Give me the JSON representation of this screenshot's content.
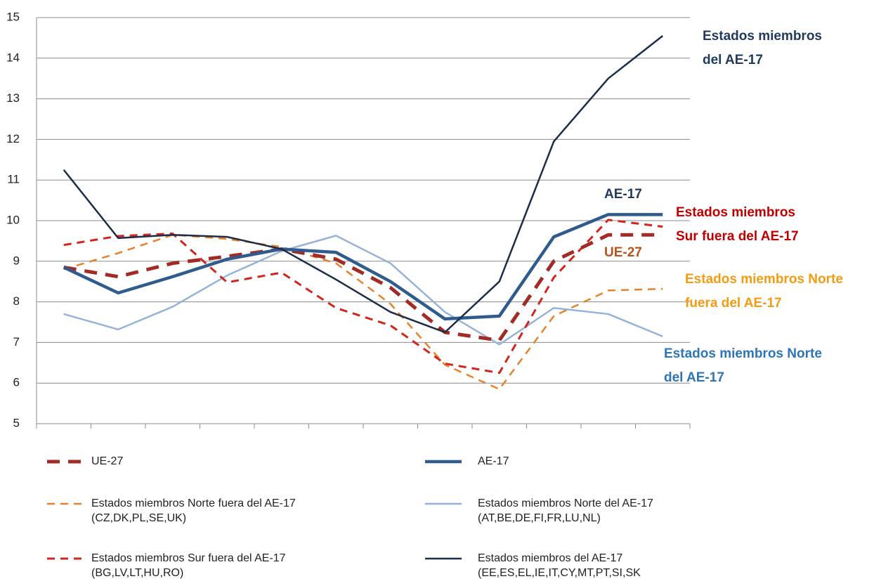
{
  "chart_data": {
    "type": "line",
    "categories": [
      null,
      null,
      null,
      null,
      null,
      null,
      null,
      null,
      null,
      null,
      null,
      null
    ],
    "ylim": [
      5,
      15
    ],
    "yticks": [
      5,
      6,
      7,
      8,
      9,
      10,
      11,
      12,
      13,
      14,
      15
    ],
    "grid": true,
    "series": [
      {
        "name": "UE-27",
        "color": "#a32b26",
        "style": "dashed",
        "values": [
          8.85,
          8.62,
          8.95,
          9.12,
          9.3,
          9.05,
          8.35,
          7.25,
          7.05,
          9.0,
          9.65,
          9.65
        ]
      },
      {
        "name": "AE-17",
        "color": "#2f5b8f",
        "style": "solid",
        "values": [
          8.85,
          8.22,
          8.62,
          9.05,
          9.3,
          9.22,
          8.5,
          7.58,
          7.65,
          9.6,
          10.15,
          10.15
        ]
      },
      {
        "name": "Estados miembros Norte fuera del AE-17",
        "note": "(CZ,DK,PL,SE,UK)",
        "color": "#e8822a",
        "style": "dashed",
        "values": [
          8.8,
          9.2,
          9.65,
          9.55,
          9.35,
          8.95,
          7.95,
          6.45,
          5.85,
          7.65,
          8.28,
          8.32
        ]
      },
      {
        "name": "Estados miembros Norte del AE-17",
        "note": "(AT,BE,DE,FI,FR,LU,NL)",
        "color": "#95b3d7",
        "style": "solid",
        "values": [
          7.7,
          7.32,
          7.88,
          8.65,
          9.25,
          9.63,
          8.95,
          7.75,
          6.95,
          7.85,
          7.7,
          7.15
        ]
      },
      {
        "name": "Estados miembros Sur fuera del AE-17",
        "note": "(BG,LV,LT,HU,RO)",
        "color": "#d0261e",
        "style": "dashed",
        "values": [
          9.4,
          9.62,
          9.68,
          8.48,
          8.72,
          7.85,
          7.42,
          6.48,
          6.25,
          8.6,
          10.02,
          9.85
        ]
      },
      {
        "name": "Estados miembros del AE-17",
        "note": "(EE,ES,EL,IE,IT,CY,MT,PT,SI,SK",
        "color": "#1c2d4a",
        "style": "solid",
        "values": [
          11.25,
          9.57,
          9.65,
          9.6,
          9.3,
          8.55,
          7.75,
          7.25,
          8.5,
          11.95,
          13.5,
          14.55
        ]
      }
    ],
    "annotations": [
      {
        "lines": [
          "Estados miembros",
          "del AE-17"
        ],
        "color": "#1f3a5f"
      },
      {
        "lines": [
          "AE-17"
        ],
        "color": "#1f3a5f"
      },
      {
        "lines": [
          "Estados miembros",
          "Sur fuera del AE-17"
        ],
        "color": "#c00000"
      },
      {
        "lines": [
          "UE-27"
        ],
        "color": "#b5541c"
      },
      {
        "lines": [
          "Estados miembros Norte",
          "fuera del AE-17"
        ],
        "color": "#f39c12"
      },
      {
        "lines": [
          "Estados miembros Norte",
          "del AE-17"
        ],
        "color": "#2e75b6"
      }
    ]
  }
}
